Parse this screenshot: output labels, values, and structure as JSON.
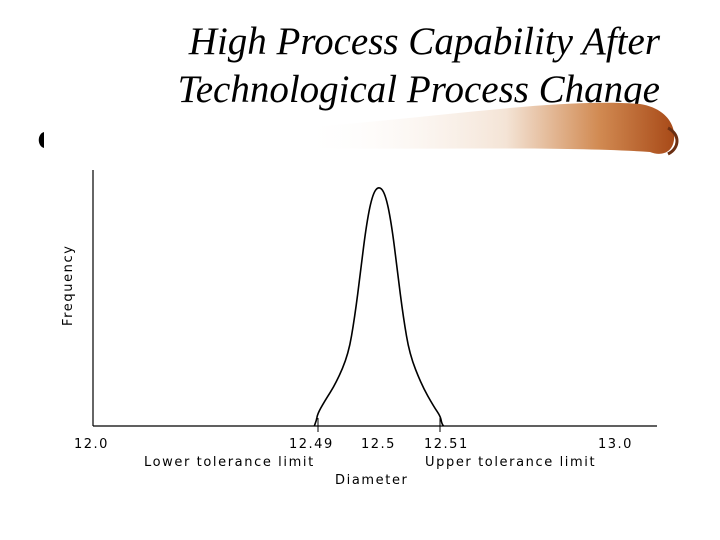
{
  "slide": {
    "title_line1": "High Process Capability After",
    "title_line2": "Technological Process Change"
  },
  "colors": {
    "accent_bar": "#c0692a",
    "accent_dark": "#6b2f12",
    "curve": "#000000"
  },
  "chart_data": {
    "type": "line",
    "title": "",
    "xlabel": "Diameter",
    "ylabel": "Frequency",
    "x_ticks": [
      "12.0",
      "12.49",
      "12.5",
      "12.51",
      "13.0"
    ],
    "annotations": [
      "Lower tolerance limit",
      "Upper tolerance limit"
    ],
    "series": [
      {
        "x": [
          12.482,
          12.486,
          12.489,
          12.491,
          12.493,
          12.495,
          12.496,
          12.497,
          12.498,
          12.499,
          12.5,
          12.501,
          12.502,
          12.503,
          12.504,
          12.505,
          12.507,
          12.509,
          12.511,
          12.514,
          12.518
        ],
        "values": [
          0,
          0.02,
          0.05,
          0.1,
          0.18,
          0.3,
          0.45,
          0.65,
          0.85,
          0.97,
          1.0,
          0.97,
          0.85,
          0.65,
          0.45,
          0.3,
          0.17,
          0.08,
          0.04,
          0.01,
          0
        ]
      }
    ]
  }
}
